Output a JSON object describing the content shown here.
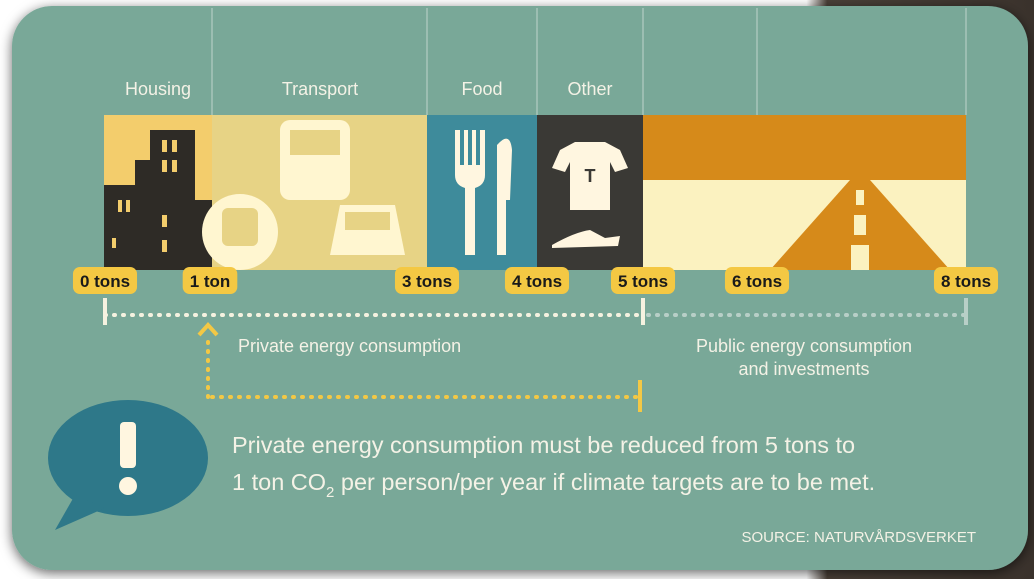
{
  "categories": [
    "Housing",
    "Transport",
    "Food",
    "Other"
  ],
  "scale_labels": [
    "0 tons",
    "1 ton",
    "3 tons",
    "4 tons",
    "5 tons",
    "6 tons",
    "8 tons"
  ],
  "private_label": "Private energy consumption",
  "public_label": [
    "Public energy consumption",
    "and investments"
  ],
  "icon_letter": "T",
  "message": {
    "line1": "Private energy consumption must be reduced from 5 tons to",
    "line2_start": "1 ton CO",
    "line2_sub": "2",
    "line2_end": " per person/per year if climate targets are to be met."
  },
  "source": "SOURCE: NATURVÅRDSVERKET"
}
